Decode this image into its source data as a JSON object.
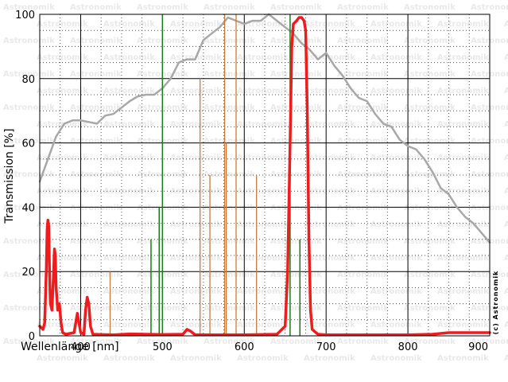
{
  "chart_data": {
    "type": "line",
    "xlabel": "Wellenlänge [nm]",
    "ylabel": "Transmission [%]",
    "xlim": [
      350,
      900
    ],
    "ylim": [
      0,
      100
    ],
    "x_ticks": [
      400,
      500,
      600,
      700,
      800,
      900
    ],
    "y_ticks": [
      0,
      20,
      40,
      60,
      80,
      100
    ],
    "grid": true,
    "credit": "(c) Astronomik",
    "watermark": "Astronomik",
    "colors": {
      "transmission": "#ee1c1c",
      "sensitivity": "#a8a8a8",
      "green_lines": "#1e7a1e",
      "orange_lines": "#c87a3a",
      "grid_major": "#000000",
      "grid_minor": "#555555"
    },
    "series": [
      {
        "color": "#ee1c1c",
        "points": [
          [
            350,
            3
          ],
          [
            354,
            2
          ],
          [
            356,
            4
          ],
          [
            358,
            20
          ],
          [
            359,
            33
          ],
          [
            360,
            36
          ],
          [
            361,
            34
          ],
          [
            362,
            20
          ],
          [
            363,
            10
          ],
          [
            365,
            8
          ],
          [
            367,
            20
          ],
          [
            368,
            27
          ],
          [
            369,
            25
          ],
          [
            370,
            15
          ],
          [
            372,
            8
          ],
          [
            374,
            10
          ],
          [
            376,
            4
          ],
          [
            378,
            1
          ],
          [
            382,
            0.5
          ],
          [
            392,
            1
          ],
          [
            394,
            4
          ],
          [
            396,
            7
          ],
          [
            398,
            4
          ],
          [
            400,
            1
          ],
          [
            404,
            0.5
          ],
          [
            406,
            8
          ],
          [
            408,
            12
          ],
          [
            410,
            10
          ],
          [
            412,
            3
          ],
          [
            415,
            0.5
          ],
          [
            440,
            0.3
          ],
          [
            460,
            0.6
          ],
          [
            500,
            0.4
          ],
          [
            525,
            0.5
          ],
          [
            530,
            2
          ],
          [
            534,
            1.5
          ],
          [
            540,
            0.3
          ],
          [
            600,
            0.3
          ],
          [
            640,
            0.5
          ],
          [
            650,
            3
          ],
          [
            653,
            20
          ],
          [
            656,
            60
          ],
          [
            658,
            90
          ],
          [
            660,
            97
          ],
          [
            664,
            98
          ],
          [
            667,
            99
          ],
          [
            670,
            99
          ],
          [
            673,
            98
          ],
          [
            675,
            95
          ],
          [
            677,
            70
          ],
          [
            679,
            30
          ],
          [
            681,
            8
          ],
          [
            683,
            2
          ],
          [
            690,
            0.5
          ],
          [
            700,
            0.3
          ],
          [
            800,
            0.3
          ],
          [
            830,
            0.5
          ],
          [
            850,
            1
          ],
          [
            870,
            1
          ],
          [
            900,
            1
          ]
        ]
      },
      {
        "color": "#a8a8a8",
        "points": [
          [
            350,
            48
          ],
          [
            360,
            55
          ],
          [
            370,
            62
          ],
          [
            380,
            66
          ],
          [
            390,
            67
          ],
          [
            400,
            67
          ],
          [
            410,
            66.5
          ],
          [
            420,
            66
          ],
          [
            430,
            68.5
          ],
          [
            440,
            69
          ],
          [
            450,
            71
          ],
          [
            460,
            73
          ],
          [
            470,
            74.5
          ],
          [
            480,
            75
          ],
          [
            490,
            75
          ],
          [
            500,
            77
          ],
          [
            510,
            80
          ],
          [
            520,
            85
          ],
          [
            530,
            86
          ],
          [
            540,
            86
          ],
          [
            550,
            92
          ],
          [
            560,
            94
          ],
          [
            570,
            96
          ],
          [
            580,
            99
          ],
          [
            590,
            98
          ],
          [
            600,
            97
          ],
          [
            610,
            98
          ],
          [
            620,
            98
          ],
          [
            630,
            100
          ],
          [
            640,
            98
          ],
          [
            650,
            96
          ],
          [
            660,
            94
          ],
          [
            670,
            91
          ],
          [
            680,
            89
          ],
          [
            690,
            86
          ],
          [
            700,
            88
          ],
          [
            710,
            84
          ],
          [
            720,
            81
          ],
          [
            730,
            77
          ],
          [
            740,
            74
          ],
          [
            750,
            73
          ],
          [
            760,
            69
          ],
          [
            770,
            66
          ],
          [
            780,
            65
          ],
          [
            790,
            61
          ],
          [
            800,
            59
          ],
          [
            810,
            58
          ],
          [
            820,
            55
          ],
          [
            830,
            51
          ],
          [
            840,
            46
          ],
          [
            850,
            44
          ],
          [
            860,
            40
          ],
          [
            870,
            37
          ],
          [
            880,
            35
          ],
          [
            890,
            32
          ],
          [
            900,
            29
          ]
        ]
      }
    ],
    "green_lines": [
      [
        486,
        30
      ],
      [
        496,
        40
      ],
      [
        500,
        100
      ],
      [
        656,
        100
      ],
      [
        668,
        30
      ]
    ],
    "orange_lines": [
      [
        436,
        20
      ],
      [
        546,
        80
      ],
      [
        558,
        50
      ],
      [
        576,
        100
      ],
      [
        578,
        60
      ],
      [
        590,
        100
      ],
      [
        615,
        50
      ]
    ]
  }
}
